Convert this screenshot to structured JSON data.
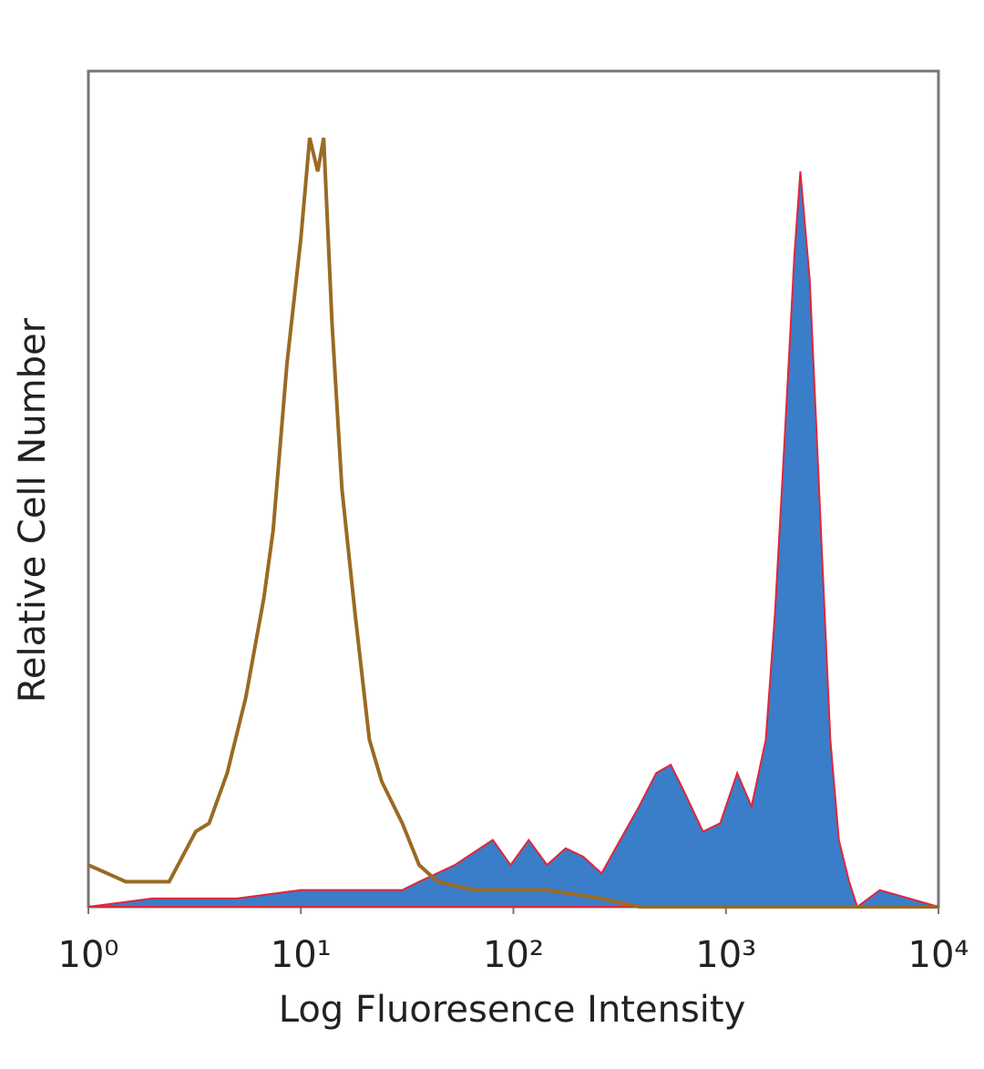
{
  "chart_data": {
    "type": "histogram-overlay",
    "x_label": "Log Fluoresence Intensity",
    "y_label": "Relative Cell Number",
    "log_x": true,
    "xlim": [
      1,
      10000
    ],
    "xticks": [
      {
        "value": 1,
        "label": "10⁰"
      },
      {
        "value": 10,
        "label": "10¹"
      },
      {
        "value": 100,
        "label": "10²"
      },
      {
        "value": 1000,
        "label": "10³"
      },
      {
        "value": 10000,
        "label": "10⁴"
      }
    ],
    "ylim": [
      0,
      100
    ],
    "series": [
      {
        "style": "filled",
        "color": "#3a7dc9",
        "edge_color": "#e0263a",
        "x": [
          1,
          2,
          5,
          10,
          20,
          30,
          36,
          53,
          80,
          97,
          118,
          144,
          176,
          213,
          260,
          318,
          390,
          470,
          550,
          630,
          780,
          940,
          1130,
          1320,
          1540,
          1700,
          1880,
          2100,
          2240,
          2480,
          2800,
          3100,
          3400,
          3800,
          4150,
          5300,
          10000
        ],
        "values": [
          0,
          1,
          1,
          2,
          2,
          2,
          3,
          5,
          8,
          5,
          8,
          5,
          7,
          6,
          4,
          8,
          12,
          16,
          17,
          14,
          9,
          10,
          16,
          12,
          20,
          35,
          55,
          78,
          88,
          75,
          45,
          20,
          8,
          3,
          0,
          2,
          0
        ]
      },
      {
        "style": "line",
        "color": "#9a6a24",
        "x": [
          1,
          1.5,
          2.4,
          3.2,
          3.7,
          4.5,
          5.5,
          6.7,
          7.4,
          8.6,
          10,
          11,
          12,
          12.8,
          14,
          15.6,
          18,
          21,
          24,
          30,
          36,
          44,
          65,
          97,
          144,
          260,
          390,
          1000,
          3800,
          10000
        ],
        "values": [
          5,
          3,
          3,
          9,
          10,
          16,
          25,
          37,
          45,
          65,
          80,
          92,
          88,
          92,
          70,
          50,
          35,
          20,
          15,
          10,
          5,
          3,
          2,
          2,
          2,
          1,
          0,
          0,
          0,
          0
        ]
      }
    ]
  }
}
